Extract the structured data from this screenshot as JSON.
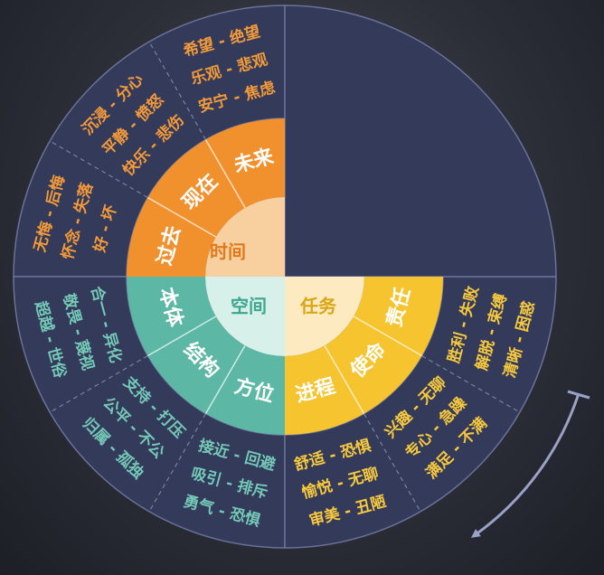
{
  "colors": {
    "panel": "#343a5a",
    "panel_stroke": "#6b7199",
    "divider": "#7b81a6",
    "time_mid": "#f0912e",
    "time_inner": "#f8d0a0",
    "time_text": "#e07a1c",
    "space_mid": "#5cb7a4",
    "space_inner": "#d8f0ea",
    "space_text": "#3ea58f",
    "task_mid": "#f5c42f",
    "task_inner": "#fdeac0",
    "task_text": "#d9a616",
    "outer_text_time": "#f39a3a",
    "outer_text_space": "#74c9b7",
    "outer_text_task": "#f7c93e",
    "arrow": "#9aa2c8"
  },
  "center": {
    "time": "时间",
    "space": "空间",
    "task": "任务"
  },
  "middle": {
    "time": [
      "过去",
      "现在",
      "未来"
    ],
    "space": [
      "方位",
      "结构",
      "本体"
    ],
    "task": [
      "责任",
      "使命",
      "进程"
    ]
  },
  "outer": {
    "time_past": [
      "无悔 - 后悔",
      "怀念 - 失落",
      "好 - 坏"
    ],
    "time_present": [
      "沉浸 - 分心",
      "平静 - 愤怒",
      "快乐 - 悲伤"
    ],
    "time_future": [
      "希望 - 绝望",
      "乐观 - 悲观",
      "安宁 - 焦虑"
    ],
    "space_body": [
      "超越 - 世俗",
      "敬畏 - 蔑视",
      "合一 - 异化"
    ],
    "space_structure": [
      "归属 - 孤独",
      "公平 - 不公",
      "支持 - 打压"
    ],
    "space_position": [
      "勇气 - 恐惧",
      "吸引 - 排斥",
      "接近 - 回避"
    ],
    "task_responsibility": [
      "清晰 - 困惑",
      "解脱 - 束缚",
      "胜利 - 失败"
    ],
    "task_mission": [
      "满足 - 不满",
      "专心 - 急躁",
      "兴趣 - 无聊"
    ],
    "task_process": [
      "审美 - 丑陋",
      "愉悦 - 无聊",
      "舒适 - 恐惧"
    ]
  }
}
